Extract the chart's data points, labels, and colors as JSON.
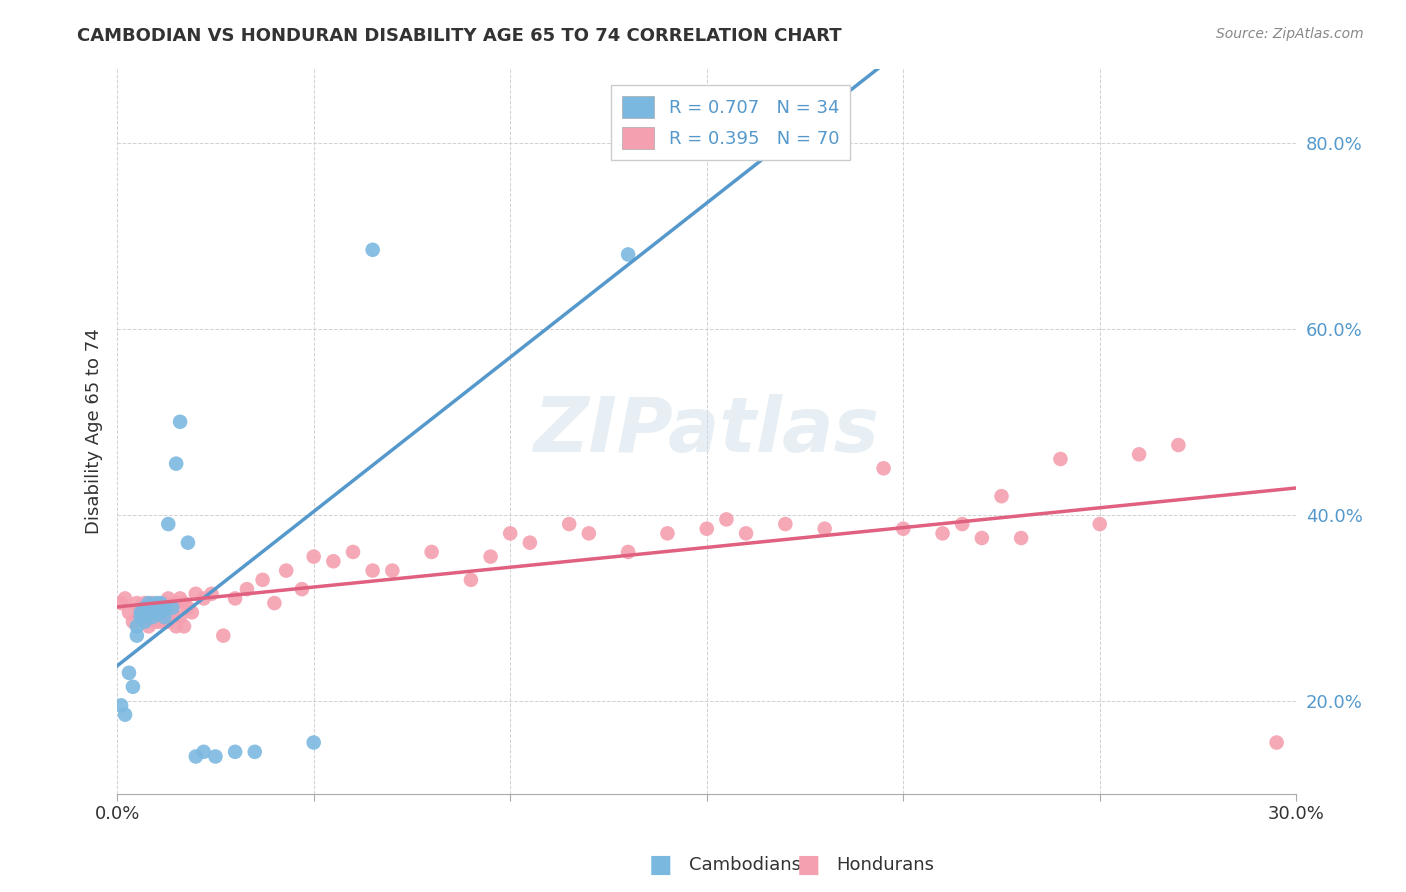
{
  "title": "CAMBODIAN VS HONDURAN DISABILITY AGE 65 TO 74 CORRELATION CHART",
  "source": "Source: ZipAtlas.com",
  "ylabel": "Disability Age 65 to 74",
  "xlim": [
    0.0,
    0.3
  ],
  "ylim": [
    0.1,
    0.88
  ],
  "xticks": [
    0.0,
    0.05,
    0.1,
    0.15,
    0.2,
    0.25,
    0.3
  ],
  "xticklabels": [
    "0.0%",
    "",
    "",
    "",
    "",
    "",
    "30.0%"
  ],
  "yticks": [
    0.2,
    0.4,
    0.6,
    0.8
  ],
  "yticklabels": [
    "20.0%",
    "40.0%",
    "60.0%",
    "80.0%"
  ],
  "cambodian_color": "#7bb8e0",
  "honduran_color": "#f4a0b0",
  "blue_line_color": "#5599cc",
  "pink_line_color": "#e06080",
  "watermark": "ZIPatlas",
  "legend_R_cambodian": "R = 0.707",
  "legend_N_cambodian": "N = 34",
  "legend_R_honduran": "R = 0.395",
  "legend_N_honduran": "N = 70",
  "cambodian_x": [
    0.001,
    0.002,
    0.003,
    0.004,
    0.005,
    0.005,
    0.006,
    0.006,
    0.007,
    0.007,
    0.008,
    0.008,
    0.009,
    0.009,
    0.01,
    0.01,
    0.011,
    0.011,
    0.012,
    0.012,
    0.013,
    0.014,
    0.015,
    0.016,
    0.018,
    0.02,
    0.022,
    0.025,
    0.03,
    0.035,
    0.05,
    0.065,
    0.13,
    0.16
  ],
  "cambodian_y": [
    0.195,
    0.185,
    0.23,
    0.215,
    0.27,
    0.28,
    0.29,
    0.295,
    0.285,
    0.3,
    0.295,
    0.305,
    0.29,
    0.3,
    0.295,
    0.305,
    0.295,
    0.305,
    0.29,
    0.3,
    0.39,
    0.3,
    0.455,
    0.5,
    0.37,
    0.14,
    0.145,
    0.14,
    0.145,
    0.145,
    0.155,
    0.685,
    0.68,
    0.82
  ],
  "honduran_x": [
    0.001,
    0.002,
    0.003,
    0.004,
    0.005,
    0.006,
    0.007,
    0.007,
    0.008,
    0.008,
    0.009,
    0.01,
    0.01,
    0.011,
    0.011,
    0.012,
    0.012,
    0.013,
    0.013,
    0.014,
    0.014,
    0.015,
    0.015,
    0.016,
    0.016,
    0.017,
    0.017,
    0.018,
    0.019,
    0.02,
    0.022,
    0.024,
    0.027,
    0.03,
    0.033,
    0.037,
    0.04,
    0.043,
    0.047,
    0.05,
    0.055,
    0.06,
    0.065,
    0.07,
    0.08,
    0.09,
    0.095,
    0.1,
    0.105,
    0.115,
    0.12,
    0.13,
    0.14,
    0.15,
    0.155,
    0.16,
    0.17,
    0.18,
    0.195,
    0.2,
    0.21,
    0.215,
    0.22,
    0.225,
    0.23,
    0.24,
    0.25,
    0.26,
    0.27,
    0.295
  ],
  "honduran_y": [
    0.305,
    0.31,
    0.295,
    0.285,
    0.305,
    0.3,
    0.285,
    0.305,
    0.28,
    0.295,
    0.305,
    0.285,
    0.295,
    0.3,
    0.285,
    0.295,
    0.305,
    0.285,
    0.31,
    0.295,
    0.295,
    0.28,
    0.305,
    0.29,
    0.31,
    0.28,
    0.305,
    0.3,
    0.295,
    0.315,
    0.31,
    0.315,
    0.27,
    0.31,
    0.32,
    0.33,
    0.305,
    0.34,
    0.32,
    0.355,
    0.35,
    0.36,
    0.34,
    0.34,
    0.36,
    0.33,
    0.355,
    0.38,
    0.37,
    0.39,
    0.38,
    0.36,
    0.38,
    0.385,
    0.395,
    0.38,
    0.39,
    0.385,
    0.45,
    0.385,
    0.38,
    0.39,
    0.375,
    0.42,
    0.375,
    0.46,
    0.39,
    0.465,
    0.475,
    0.155
  ]
}
